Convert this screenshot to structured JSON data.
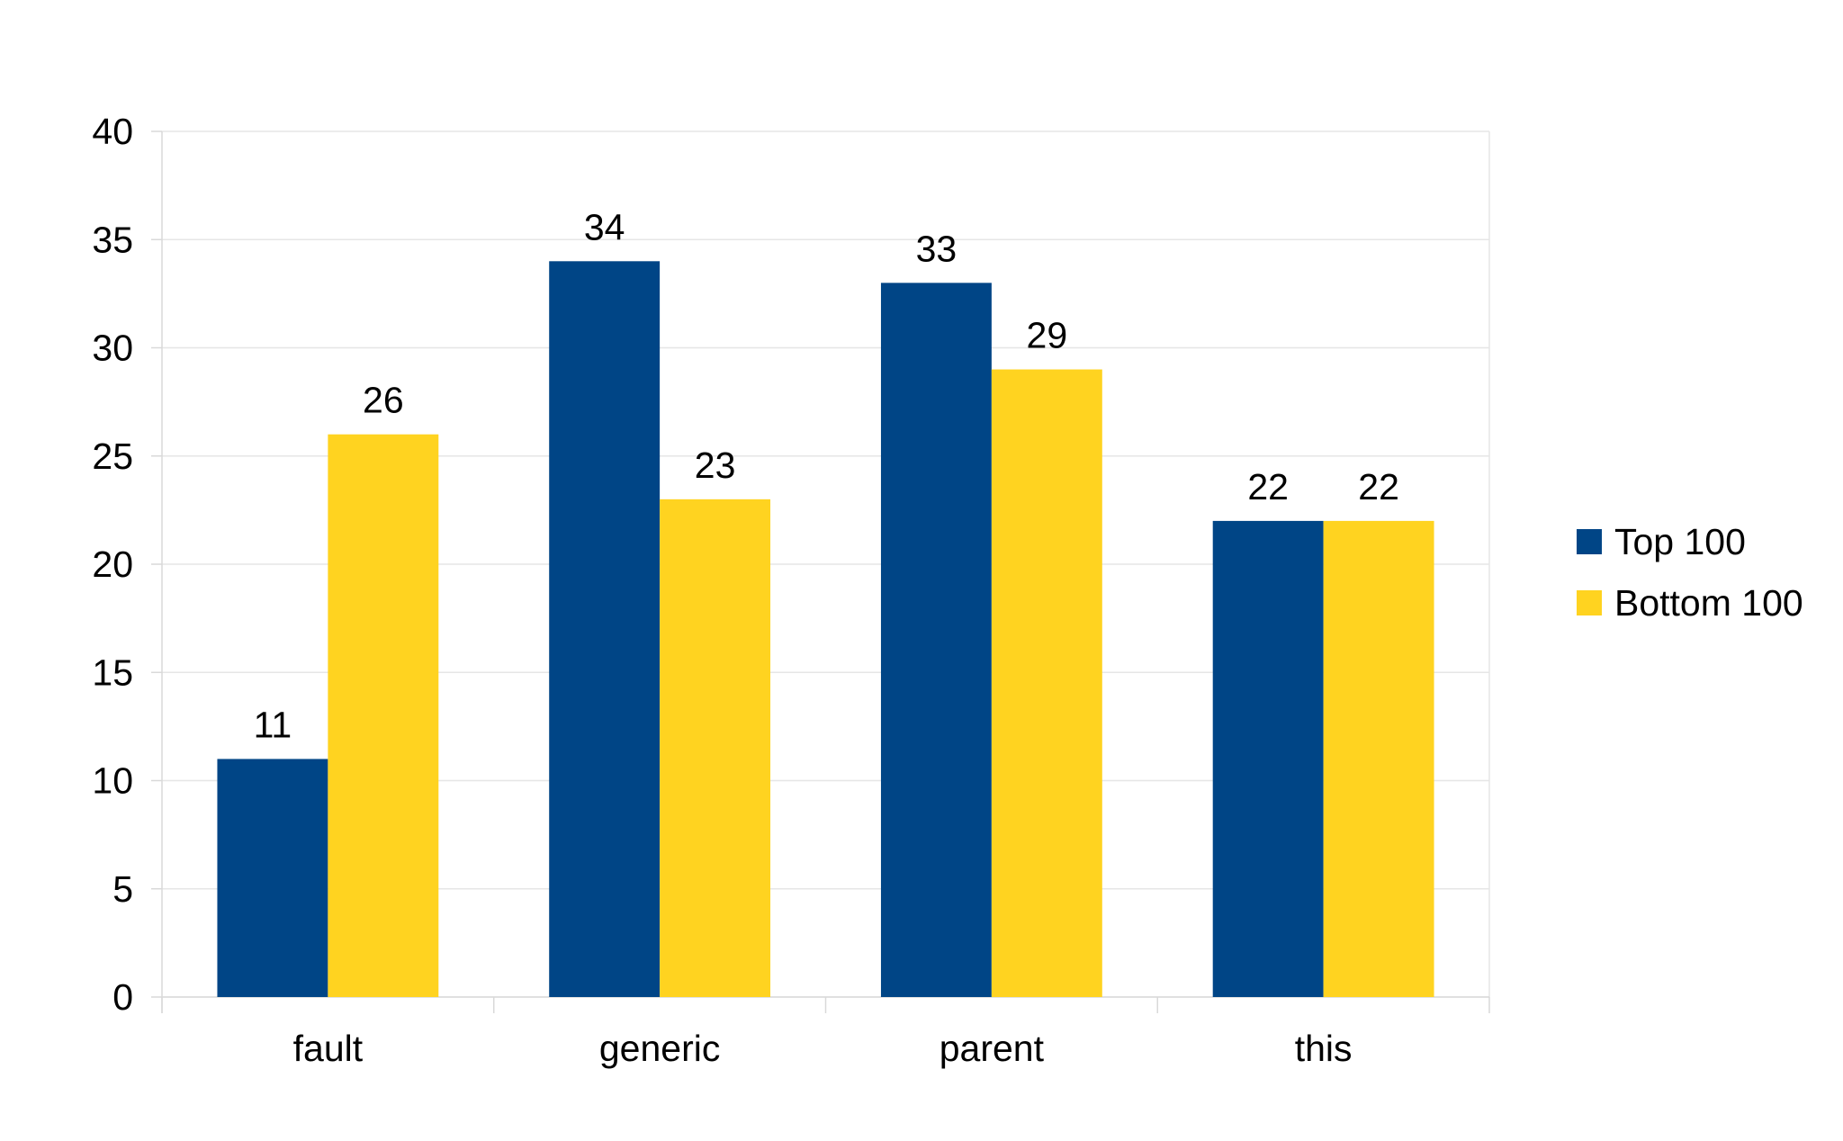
{
  "chart_data": {
    "type": "bar",
    "categories": [
      "fault",
      "generic",
      "parent",
      "this"
    ],
    "series": [
      {
        "name": "Top 100",
        "values": [
          11,
          34,
          33,
          22
        ],
        "color": "#004586"
      },
      {
        "name": "Bottom 100",
        "values": [
          26,
          23,
          29,
          22
        ],
        "color": "#ffd320"
      }
    ],
    "yticks": [
      0,
      5,
      10,
      15,
      20,
      25,
      30,
      35,
      40
    ],
    "ylim": [
      0,
      40
    ],
    "grid": true,
    "gridColor": "#e6e6e6",
    "data_labels": true,
    "legend": "right",
    "title": "",
    "xlabel": "",
    "ylabel": ""
  }
}
